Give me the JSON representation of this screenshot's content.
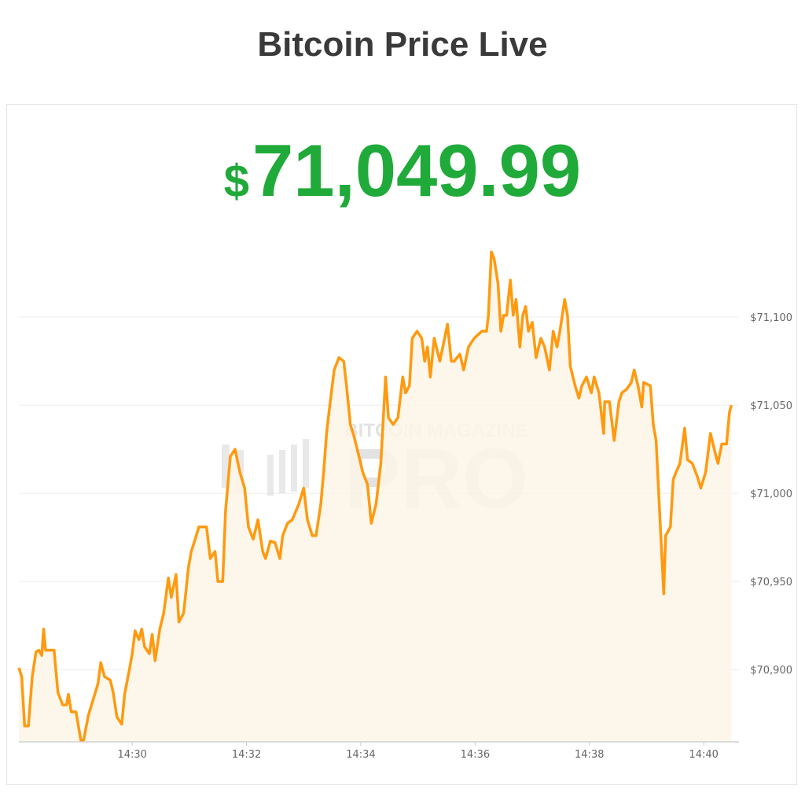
{
  "page": {
    "title": "Bitcoin Price Live"
  },
  "price": {
    "currency_symbol": "$",
    "value": "71,049.99",
    "color": "#1faa39"
  },
  "watermark": {
    "line1": "BITCOIN MAGAZINE",
    "line2": "PRO"
  },
  "chart_data": {
    "type": "area",
    "title": "",
    "xlabel": "",
    "ylabel": "",
    "line_color": "#ff9a0f",
    "fill_color": "#fdf4e8",
    "grid": true,
    "y_axis_position": "right",
    "xlim": [
      "14:28:01",
      "14:40:37"
    ],
    "ylim": [
      70859,
      71146
    ],
    "x_ticks": [
      "14:30",
      "14:32",
      "14:34",
      "14:36",
      "14:38",
      "14:40"
    ],
    "y_ticks": [
      {
        "value": 70900,
        "label": "$70,900"
      },
      {
        "value": 70950,
        "label": "$70,950"
      },
      {
        "value": 71000,
        "label": "$71,000"
      },
      {
        "value": 71050,
        "label": "$71,050"
      },
      {
        "value": 71100,
        "label": "$71,100"
      }
    ],
    "series": [
      {
        "x": [
          "14:28:01",
          "14:28:04",
          "14:28:07",
          "14:28:11",
          "14:28:15",
          "14:28:19",
          "14:28:22",
          "14:28:25",
          "14:28:27",
          "14:28:29",
          "14:28:38",
          "14:28:42",
          "14:28:47",
          "14:28:51",
          "14:28:53",
          "14:28:56",
          "14:29:01",
          "14:29:06",
          "14:29:09",
          "14:29:14",
          "14:29:19",
          "14:29:24",
          "14:29:27",
          "14:29:31",
          "14:29:37",
          "14:29:40",
          "14:29:44",
          "14:29:49",
          "14:29:52",
          "14:29:57",
          "14:30:00",
          "14:30:03",
          "14:30:07",
          "14:30:10",
          "14:30:13",
          "14:30:18",
          "14:30:21",
          "14:30:24",
          "14:30:29",
          "14:30:33",
          "14:30:38",
          "14:30:41",
          "14:30:46",
          "14:30:49",
          "14:30:54",
          "14:30:59",
          "14:31:02",
          "14:31:05",
          "14:31:10",
          "14:31:18",
          "14:31:22",
          "14:31:27",
          "14:31:30",
          "14:31:35",
          "14:31:38",
          "14:31:43",
          "14:31:48",
          "14:31:53",
          "14:31:58",
          "14:32:02",
          "14:32:07",
          "14:32:12",
          "14:32:17",
          "14:32:20",
          "14:32:25",
          "14:32:30",
          "14:32:35",
          "14:32:38",
          "14:32:43",
          "14:32:48",
          "14:32:55",
          "14:33:00",
          "14:33:04",
          "14:33:09",
          "14:33:13",
          "14:33:18",
          "14:33:21",
          "14:33:24",
          "14:33:27",
          "14:33:32",
          "14:33:37",
          "14:33:42",
          "14:33:45",
          "14:33:49",
          "14:33:53",
          "14:33:58",
          "14:34:02",
          "14:34:07",
          "14:34:11",
          "14:34:16",
          "14:34:21",
          "14:34:26",
          "14:34:29",
          "14:34:34",
          "14:34:39",
          "14:34:44",
          "14:34:47",
          "14:34:51",
          "14:34:54",
          "14:34:59",
          "14:35:04",
          "14:35:07",
          "14:35:10",
          "14:35:13",
          "14:35:17",
          "14:35:23",
          "14:35:28",
          "14:35:31",
          "14:35:35",
          "14:35:38",
          "14:35:44",
          "14:35:48",
          "14:35:53",
          "14:35:59",
          "14:36:07",
          "14:36:12",
          "14:36:14",
          "14:36:17",
          "14:36:20",
          "14:36:24",
          "14:36:27",
          "14:36:30",
          "14:36:33",
          "14:36:37",
          "14:36:40",
          "14:36:43",
          "14:36:47",
          "14:36:50",
          "14:36:53",
          "14:36:56",
          "14:37:00",
          "14:37:04",
          "14:37:09",
          "14:37:13",
          "14:37:18",
          "14:37:22",
          "14:37:26",
          "14:37:29",
          "14:37:34",
          "14:37:37",
          "14:37:40",
          "14:37:45",
          "14:37:49",
          "14:37:52",
          "14:37:57",
          "14:38:02",
          "14:38:05",
          "14:38:10",
          "14:38:15",
          "14:38:16",
          "14:38:21",
          "14:38:26",
          "14:38:31",
          "14:38:34",
          "14:38:39",
          "14:38:44",
          "14:38:47",
          "14:38:51",
          "14:38:55",
          "14:38:57",
          "14:39:04",
          "14:39:07",
          "14:39:10",
          "14:39:15",
          "14:39:18",
          "14:39:20",
          "14:39:25",
          "14:39:28",
          "14:39:31",
          "14:39:35",
          "14:39:40",
          "14:39:43",
          "14:39:48",
          "14:39:53",
          "14:39:57",
          "14:40:02",
          "14:40:07",
          "14:40:12",
          "14:40:15",
          "14:40:19",
          "14:40:24",
          "14:40:27",
          "14:40:29"
        ],
        "y": [
          70901,
          70896,
          70868,
          70868,
          70896,
          70910,
          70911,
          70908,
          70923,
          70911,
          70911,
          70887,
          70880,
          70880,
          70886,
          70876,
          70876,
          70860,
          70860,
          70874,
          70883,
          70892,
          70904,
          70896,
          70894,
          70887,
          70873,
          70869,
          70886,
          70900,
          70909,
          70922,
          70917,
          70923,
          70913,
          70909,
          70920,
          70905,
          70923,
          70932,
          70952,
          70941,
          70954,
          70927,
          70932,
          70958,
          70967,
          70972,
          70981,
          70981,
          70963,
          70967,
          70950,
          70950,
          70990,
          71021,
          71025,
          71012,
          71003,
          70981,
          70974,
          70985,
          70967,
          70963,
          70973,
          70972,
          70963,
          70976,
          70983,
          70985,
          70994,
          71003,
          70985,
          70976,
          70976,
          70994,
          71012,
          71034,
          71048,
          71070,
          71077,
          71075,
          71061,
          71039,
          71032,
          71021,
          71012,
          71005,
          70983,
          70994,
          71017,
          71066,
          71043,
          71039,
          71043,
          71066,
          71057,
          71061,
          71088,
          71092,
          71088,
          71075,
          71083,
          71066,
          71088,
          71075,
          71088,
          71096,
          71075,
          71075,
          71079,
          71070,
          71083,
          71088,
          71092,
          71092,
          71101,
          71137,
          71133,
          71119,
          71092,
          71101,
          71101,
          71121,
          71101,
          71110,
          71083,
          71101,
          71106,
          71092,
          71097,
          71077,
          71088,
          71083,
          71070,
          71092,
          71083,
          71092,
          71110,
          71101,
          71072,
          71061,
          71054,
          71061,
          71066,
          71057,
          71066,
          71057,
          71034,
          71052,
          71052,
          71030,
          71052,
          71057,
          71059,
          71063,
          71070,
          71061,
          71049,
          71063,
          71061,
          71039,
          71030,
          70976,
          70943,
          70976,
          70981,
          71008,
          71012,
          71017,
          71037,
          71019,
          71017,
          71010,
          71003,
          71012,
          71034,
          71023,
          71017,
          71028,
          71028,
          71046,
          71049.99
        ]
      }
    ]
  }
}
